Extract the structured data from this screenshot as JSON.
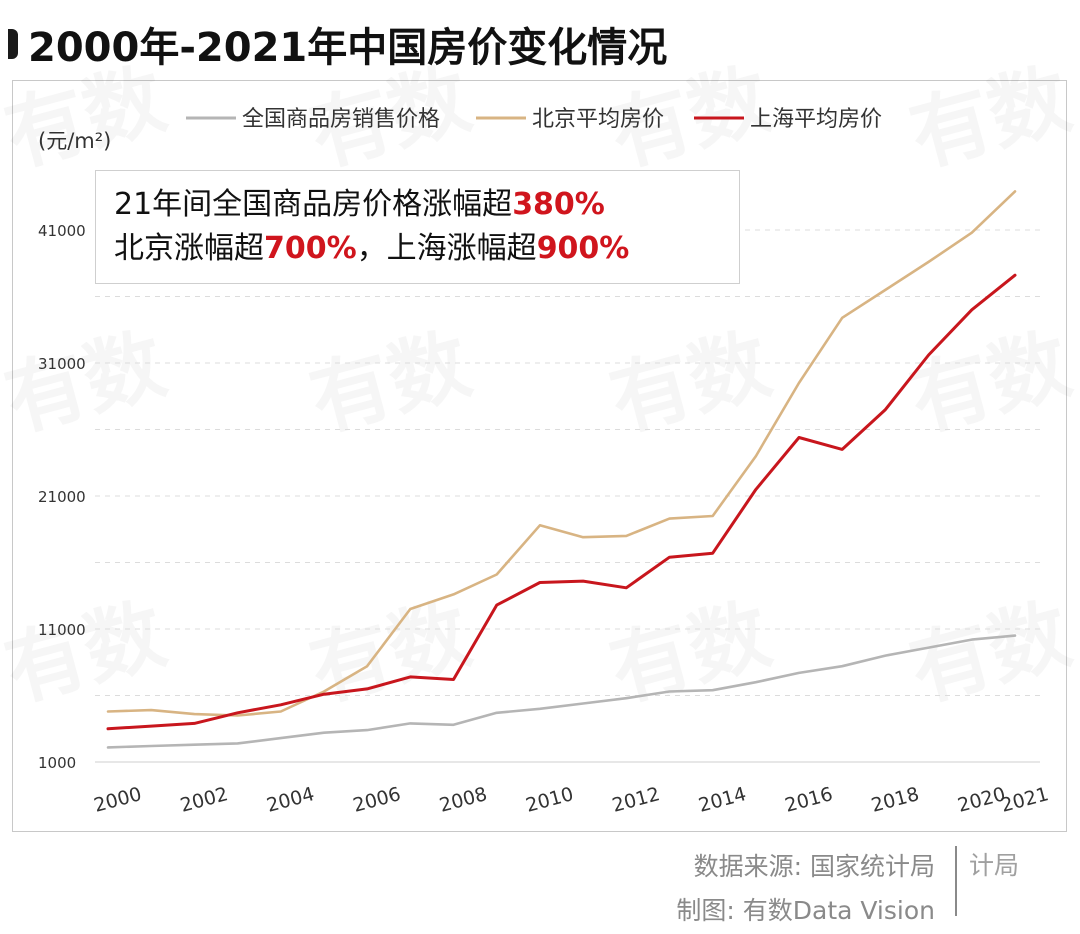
{
  "title": "2000年-2021年中国房价变化情况",
  "unit_label": "(元/m²)",
  "callout": {
    "line1_prefix": "21年间全国商品房价格涨幅超",
    "line1_value": "380%",
    "line2_prefix": "北京涨幅超",
    "line2_value": "700%",
    "line2_sep": "，上海涨幅超",
    "line2_value2": "900%"
  },
  "footer": {
    "source": "数据来源: 国家统计局",
    "credit": "制图: 有数Data Vision",
    "side": "计局"
  },
  "watermark": "有数",
  "colors": {
    "national": "#b5b5b5",
    "beijing": "#d8b483",
    "shanghai": "#c8161d",
    "highlight": "#d0151d"
  },
  "chart_data": {
    "type": "line",
    "x": [
      2000,
      2001,
      2002,
      2003,
      2004,
      2005,
      2006,
      2007,
      2008,
      2009,
      2010,
      2011,
      2012,
      2013,
      2014,
      2015,
      2016,
      2017,
      2018,
      2019,
      2020,
      2021
    ],
    "x_tick_labels": [
      "2000",
      "2002",
      "2004",
      "2006",
      "2008",
      "2010",
      "2012",
      "2014",
      "2016",
      "2018",
      "2020",
      "2021"
    ],
    "y_ticks": [
      1000,
      11000,
      21000,
      31000,
      41000
    ],
    "ylim": [
      1000,
      44000
    ],
    "grid": "horizontal-dashed",
    "legend_position": "top",
    "series": [
      {
        "name": "全国商品房销售价格",
        "color_key": "national",
        "values": [
          2100,
          2200,
          2300,
          2400,
          2800,
          3200,
          3400,
          3900,
          3800,
          4700,
          5000,
          5400,
          5800,
          6300,
          6400,
          7000,
          7700,
          8200,
          9000,
          9600,
          10200,
          10500
        ]
      },
      {
        "name": "北京平均房价",
        "color_key": "beijing",
        "values": [
          4800,
          4900,
          4600,
          4500,
          4800,
          6300,
          8200,
          12500,
          13600,
          15100,
          18800,
          17900,
          18000,
          19300,
          19500,
          24000,
          29500,
          34400,
          36500,
          38600,
          40800,
          43900
        ]
      },
      {
        "name": "上海平均房价",
        "color_key": "shanghai",
        "values": [
          3500,
          3700,
          3900,
          4700,
          5300,
          6100,
          6500,
          7400,
          7200,
          12800,
          14500,
          14600,
          14100,
          16400,
          16700,
          21500,
          25400,
          24500,
          27500,
          31600,
          35000,
          37600
        ]
      }
    ]
  }
}
